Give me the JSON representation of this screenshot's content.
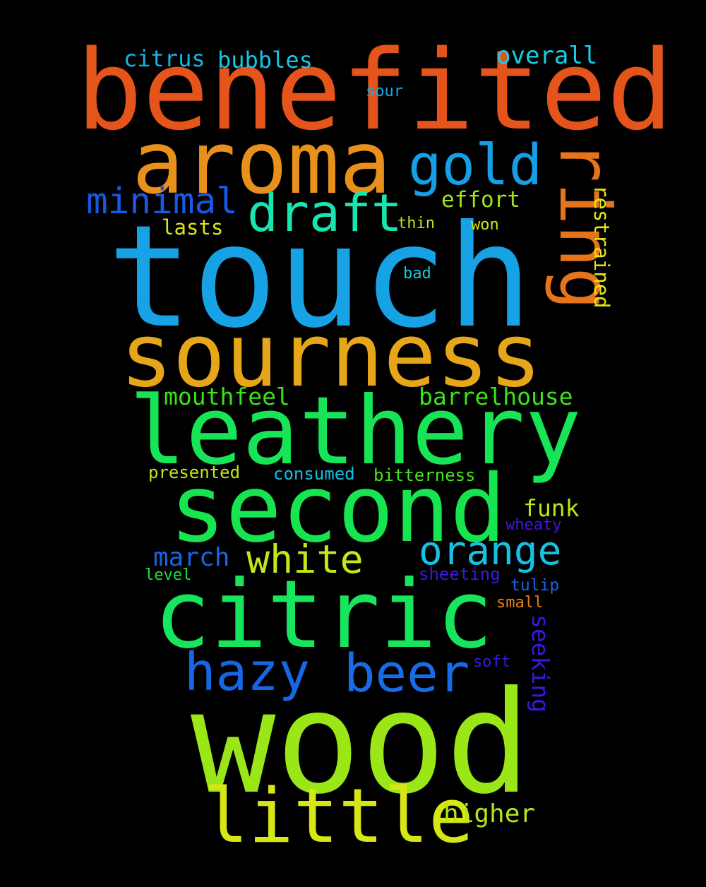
{
  "words": [
    {
      "text": "touch",
      "color": "#17a2e5"
    },
    {
      "text": "wood",
      "color": "#9ae617"
    },
    {
      "text": "benefited",
      "color": "#e5541a"
    },
    {
      "text": "aroma",
      "color": "#e8901c"
    },
    {
      "text": "sourness",
      "color": "#e6a619"
    },
    {
      "text": "leathery",
      "color": "#17e557"
    },
    {
      "text": "second",
      "color": "#17e54f"
    },
    {
      "text": "citric",
      "color": "#17e55e"
    },
    {
      "text": "little",
      "color": "#d7e617"
    },
    {
      "text": "ring",
      "color": "#e5741a"
    },
    {
      "text": "gold",
      "color": "#179fe5"
    },
    {
      "text": "draft",
      "color": "#17e5b0"
    },
    {
      "text": "hazy",
      "color": "#1766e5"
    },
    {
      "text": "beer",
      "color": "#176be5"
    },
    {
      "text": "orange",
      "color": "#17c1e5"
    },
    {
      "text": "white",
      "color": "#c7e617"
    },
    {
      "text": "minimal",
      "color": "#1759e5"
    },
    {
      "text": "mouthfeel",
      "color": "#37e517"
    },
    {
      "text": "barrelhouse",
      "color": "#3ce517"
    },
    {
      "text": "funk",
      "color": "#b8e617"
    },
    {
      "text": "march",
      "color": "#1765e5"
    },
    {
      "text": "higher",
      "color": "#b5e617"
    },
    {
      "text": "seeking",
      "color": "#3b17e5"
    },
    {
      "text": "restrained",
      "color": "#e5e517"
    },
    {
      "text": "overall",
      "color": "#17cfe5"
    },
    {
      "text": "citrus",
      "color": "#17b5e5"
    },
    {
      "text": "bubbles",
      "color": "#17c6e5"
    },
    {
      "text": "effort",
      "color": "#a2e517"
    },
    {
      "text": "lasts",
      "color": "#dce517"
    },
    {
      "text": "sour",
      "color": "#17a9e5"
    },
    {
      "text": "thin",
      "color": "#bde517"
    },
    {
      "text": "won",
      "color": "#d0e517"
    },
    {
      "text": "bad",
      "color": "#17c8e5"
    },
    {
      "text": "presented",
      "color": "#c9e517"
    },
    {
      "text": "consumed",
      "color": "#17c0e5"
    },
    {
      "text": "bitterness",
      "color": "#49e517"
    },
    {
      "text": "wheaty",
      "color": "#4017e5"
    },
    {
      "text": "sheeting",
      "color": "#3f17e5"
    },
    {
      "text": "tulip",
      "color": "#1764e5"
    },
    {
      "text": "level",
      "color": "#17e543"
    },
    {
      "text": "small",
      "color": "#e58217"
    },
    {
      "text": "soft",
      "color": "#3a17e5"
    }
  ]
}
